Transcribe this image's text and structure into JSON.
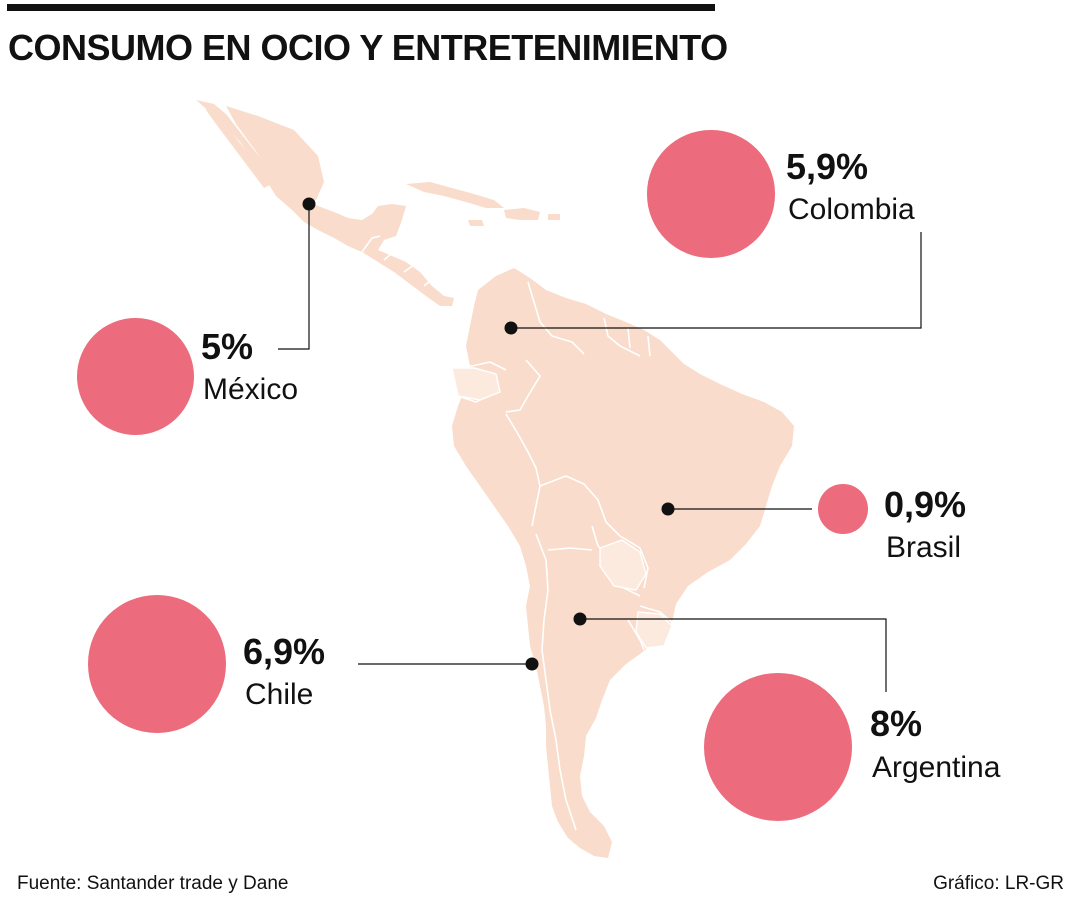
{
  "title": "CONSUMO EN OCIO Y ENTRETENIMIENTO",
  "colors": {
    "land": "#f9dccb",
    "land_light": "#fdeadf",
    "border": "#ffffff",
    "bubble": "#ec6c7e",
    "text": "#111111",
    "leader": "#111111"
  },
  "countries": [
    {
      "id": "mexico",
      "name": "México",
      "value_label": "5%",
      "value": 5
    },
    {
      "id": "colombia",
      "name": "Colombia",
      "value_label": "5,9%",
      "value": 5.9
    },
    {
      "id": "brasil",
      "name": "Brasil",
      "value_label": "0,9%",
      "value": 0.9
    },
    {
      "id": "chile",
      "name": "Chile",
      "value_label": "6,9%",
      "value": 6.9
    },
    {
      "id": "argentina",
      "name": "Argentina",
      "value_label": "8%",
      "value": 8
    }
  ],
  "footer": {
    "source": "Fuente: Santander trade y Dane",
    "credit": "Gráfico: LR-GR"
  }
}
